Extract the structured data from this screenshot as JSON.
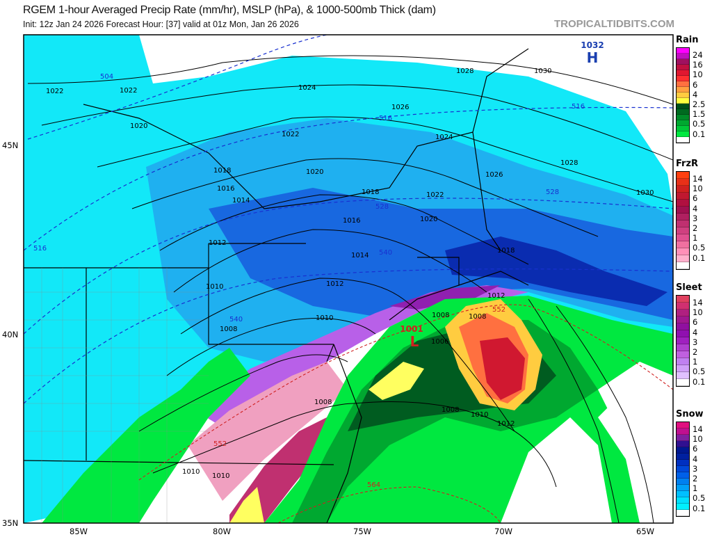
{
  "header": {
    "title": "RGEM 1-hour Averaged Precip Rate (mm/hr), MSLP (hPa), & 1000-500mb Thick (dam)",
    "subtitle": "Init: 12z Jan 24 2026   Forecast Hour: [37]   valid at 01z Mon, Jan 26 2026",
    "brand": "TROPICALTIDBITS.COM"
  },
  "axes": {
    "lon_labels": [
      "85W",
      "80W",
      "75W",
      "70W",
      "65W"
    ],
    "lat_labels": [
      "45N",
      "40N",
      "35N"
    ]
  },
  "pressure_centers": [
    {
      "type": "H",
      "value": "1032",
      "color": "#1a3fb0"
    },
    {
      "type": "L",
      "value": "1001",
      "color": "#d02020"
    }
  ],
  "isobar_labels": [
    "1022",
    "1022",
    "1020",
    "1018",
    "1016",
    "1014",
    "1012",
    "1010",
    "1008",
    "1010",
    "1010",
    "1024",
    "1026",
    "1028",
    "1030",
    "1024",
    "1022",
    "1020",
    "1018",
    "1016",
    "1014",
    "1012",
    "1010",
    "1026",
    "1028",
    "1030",
    "1022",
    "1020",
    "1018",
    "1012",
    "1008",
    "1008",
    "1006",
    "1008",
    "1010",
    "1012",
    "1008"
  ],
  "thickness_labels": {
    "blue": [
      "504",
      "516",
      "516",
      "528",
      "528",
      "540",
      "540",
      "516"
    ],
    "red": [
      "552",
      "552",
      "564"
    ]
  },
  "legends": [
    {
      "title": "Rain",
      "labels": [
        "24",
        "16",
        "10",
        "6",
        "4",
        "2.5",
        "1.5",
        "0.5",
        "0.1"
      ],
      "colors": [
        "#ff00ff",
        "#c010c0",
        "#a01060",
        "#c01040",
        "#e01830",
        "#ff3030",
        "#ff7040",
        "#ffa040",
        "#ffcc40",
        "#ffff40",
        "#00501a",
        "#006a20",
        "#008a28",
        "#00a830",
        "#00c838",
        "#00e840",
        "#ffffff"
      ]
    },
    {
      "title": "FrzR",
      "labels": [
        "14",
        "10",
        "6",
        "4",
        "3",
        "2",
        "1",
        "0.5",
        "0.1"
      ],
      "colors": [
        "#ff4010",
        "#e83018",
        "#d02020",
        "#c01830",
        "#b01040",
        "#a01050",
        "#b02060",
        "#c03070",
        "#d04080",
        "#e05090",
        "#f070a0",
        "#ff90b8",
        "#ffb0cc",
        "#ffffff"
      ]
    },
    {
      "title": "Sleet",
      "labels": [
        "14",
        "10",
        "6",
        "4",
        "3",
        "2",
        "1",
        "0.5",
        "0.1"
      ],
      "colors": [
        "#e04060",
        "#d03070",
        "#b02080",
        "#a01890",
        "#9010a0",
        "#9010b0",
        "#a020c0",
        "#b040d0",
        "#c060e0",
        "#c080f0",
        "#d0a0f8",
        "#e0c0ff",
        "#ffffff"
      ]
    },
    {
      "title": "Snow",
      "labels": [
        "14",
        "10",
        "6",
        "4",
        "3",
        "2",
        "1",
        "0.5",
        "0.1"
      ],
      "colors": [
        "#e01080",
        "#c01090",
        "#8020a0",
        "#301090",
        "#001890",
        "#0020a0",
        "#0030c0",
        "#0048d8",
        "#0060e8",
        "#0080f0",
        "#00a0f8",
        "#00c0ff",
        "#00e0ff",
        "#00f0ff",
        "#ffffff"
      ]
    }
  ]
}
